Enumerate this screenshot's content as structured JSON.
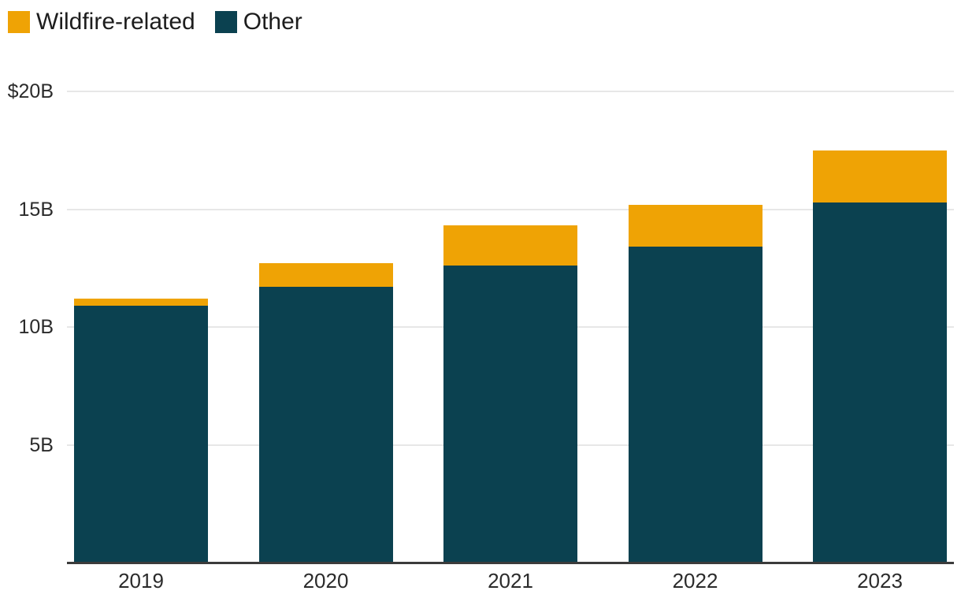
{
  "chart_data": {
    "type": "bar",
    "stacked": true,
    "title": "",
    "xlabel": "",
    "ylabel": "",
    "unit": "billions of dollars",
    "categories": [
      "2019",
      "2020",
      "2021",
      "2022",
      "2023"
    ],
    "series": [
      {
        "name": "Wildfire-related",
        "color": "#EFA305",
        "values": [
          0.3,
          1.0,
          1.7,
          1.8,
          2.2
        ]
      },
      {
        "name": "Other",
        "color": "#0B4150",
        "values": [
          10.9,
          11.7,
          12.6,
          13.4,
          15.3
        ]
      }
    ],
    "stack_order_bottom_to_top": [
      "Other",
      "Wildfire-related"
    ],
    "totals": [
      11.2,
      12.7,
      14.3,
      15.2,
      17.5
    ],
    "ylim": [
      0,
      20
    ],
    "y_ticks": [
      {
        "label": "$20B",
        "value": 20
      },
      {
        "label": "15B",
        "value": 15
      },
      {
        "label": "10B",
        "value": 10
      },
      {
        "label": "5B",
        "value": 5
      }
    ],
    "grid": true,
    "legend_position": "top-left",
    "colors": {
      "wildfire": "#EFA305",
      "other": "#0B4150",
      "gridline": "#E7E7E7",
      "axis_line": "#3B3B3B",
      "text": "#2B2B2B"
    }
  }
}
